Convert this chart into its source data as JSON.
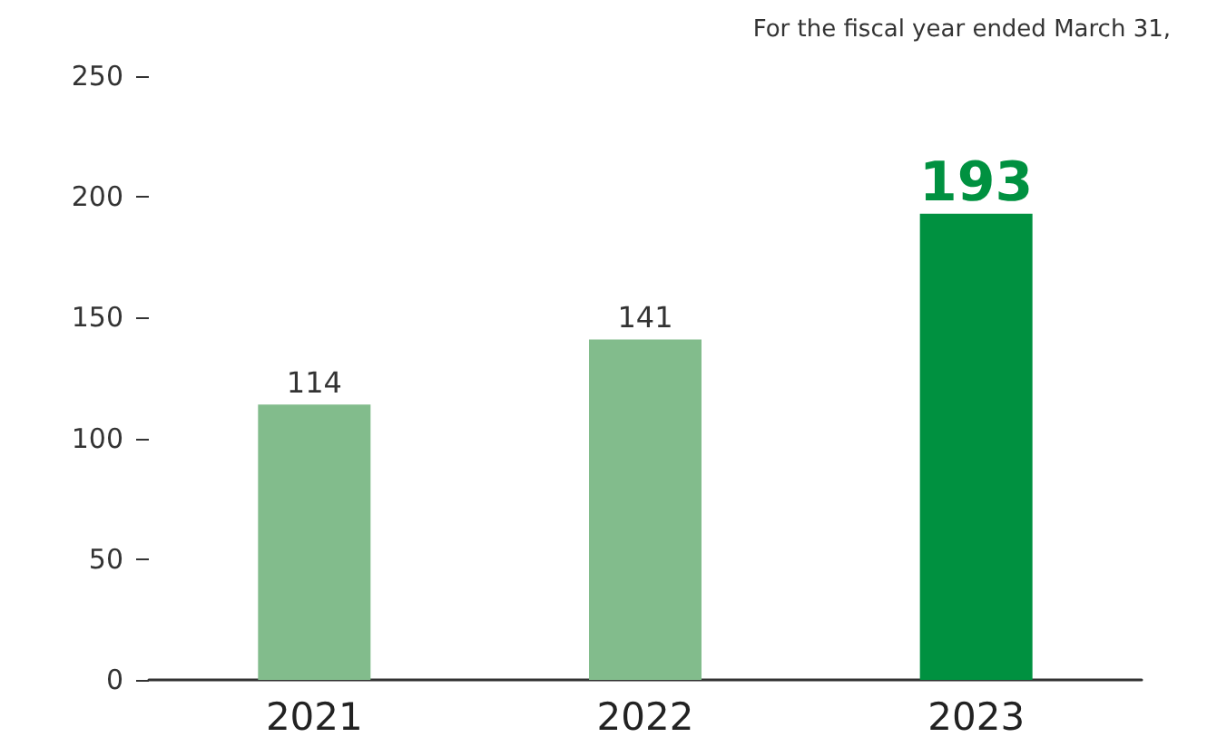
{
  "chart_data": {
    "type": "bar",
    "categories": [
      "2021",
      "2022",
      "2023"
    ],
    "values": [
      114,
      141,
      193
    ],
    "colors": [
      "#82bc8c",
      "#82bc8c",
      "#009140"
    ],
    "ylim": [
      0,
      250
    ],
    "yticks": [
      0,
      50,
      100,
      150,
      200,
      250
    ],
    "data_labels": true,
    "grid": false,
    "annotations": [
      "For the fiscal year ended March 31,"
    ]
  }
}
